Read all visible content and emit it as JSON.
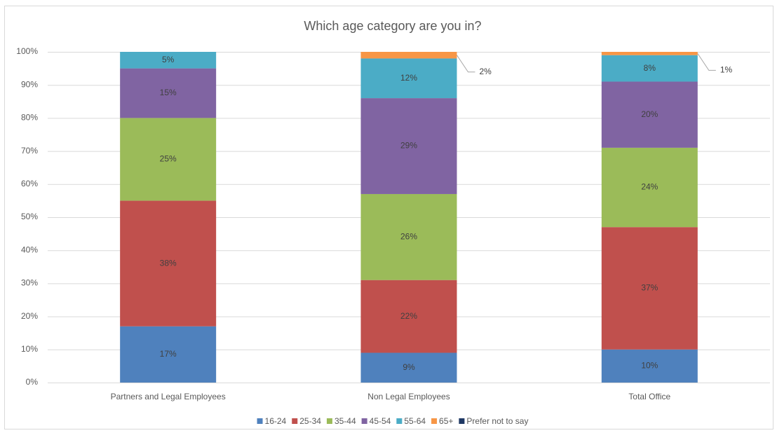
{
  "chart_data": {
    "type": "stacked_bar",
    "title": "Which age category are you in?",
    "categories": [
      "Partners and Legal Employees",
      "Non Legal Employees",
      "Total Office"
    ],
    "series": [
      {
        "name": "16-24",
        "color": "#4f81bd",
        "values": [
          17,
          9,
          10
        ],
        "value_labels": [
          "17%",
          "9%",
          "10%"
        ]
      },
      {
        "name": "25-34",
        "color": "#c0504d",
        "values": [
          38,
          22,
          37
        ],
        "value_labels": [
          "38%",
          "22%",
          "37%"
        ]
      },
      {
        "name": "35-44",
        "color": "#9bbb59",
        "values": [
          25,
          26,
          24
        ],
        "value_labels": [
          "25%",
          "26%",
          "24%"
        ]
      },
      {
        "name": "45-54",
        "color": "#8064a2",
        "values": [
          15,
          29,
          20
        ],
        "value_labels": [
          "15%",
          "29%",
          "20%"
        ]
      },
      {
        "name": "55-64",
        "color": "#4bacc6",
        "values": [
          5,
          12,
          8
        ],
        "value_labels": [
          "5%",
          "12%",
          "8%"
        ]
      },
      {
        "name": "65+",
        "color": "#f79646",
        "values": [
          0,
          2,
          1
        ],
        "value_labels": [
          null,
          "2%",
          "1%"
        ]
      },
      {
        "name": "Prefer not to say",
        "color": "#1f3864",
        "values": [
          0,
          0,
          0
        ],
        "value_labels": [
          null,
          null,
          null
        ]
      }
    ],
    "ylim": [
      0,
      100
    ],
    "yticks": [
      {
        "value": 0,
        "label": "0%"
      },
      {
        "value": 10,
        "label": "10%"
      },
      {
        "value": 20,
        "label": "20%"
      },
      {
        "value": 30,
        "label": "30%"
      },
      {
        "value": 40,
        "label": "40%"
      },
      {
        "value": 50,
        "label": "50%"
      },
      {
        "value": 60,
        "label": "60%"
      },
      {
        "value": 70,
        "label": "70%"
      },
      {
        "value": 80,
        "label": "80%"
      },
      {
        "value": 90,
        "label": "90%"
      },
      {
        "value": 100,
        "label": "100%"
      }
    ],
    "grid": true,
    "legend": "bottom"
  }
}
